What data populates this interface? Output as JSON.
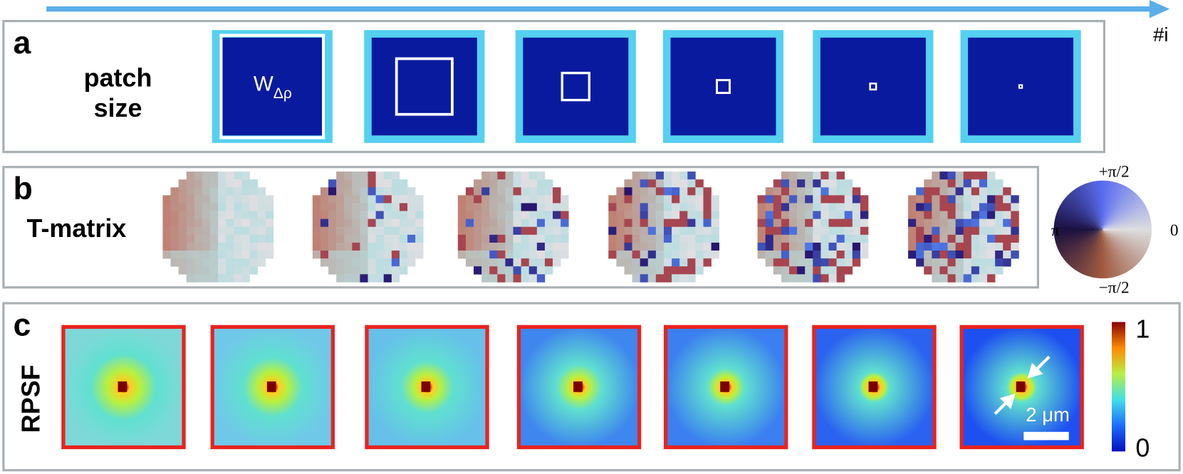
{
  "panel_a": {
    "label": "a",
    "title_lines": [
      "patch",
      "size"
    ],
    "axis_label": "#i",
    "patch_symbol": "W",
    "patch_subscript": "Δρ"
  },
  "panel_b": {
    "label": "b",
    "title": "T-matrix",
    "wheel_labels": {
      "top": "+π/2",
      "left": "π",
      "right": "0",
      "bottom": "−π/2"
    }
  },
  "panel_c": {
    "label": "c",
    "title": "RPSF",
    "colorbar_max": "1",
    "colorbar_min": "0",
    "scale_bar": "2 μm"
  }
}
